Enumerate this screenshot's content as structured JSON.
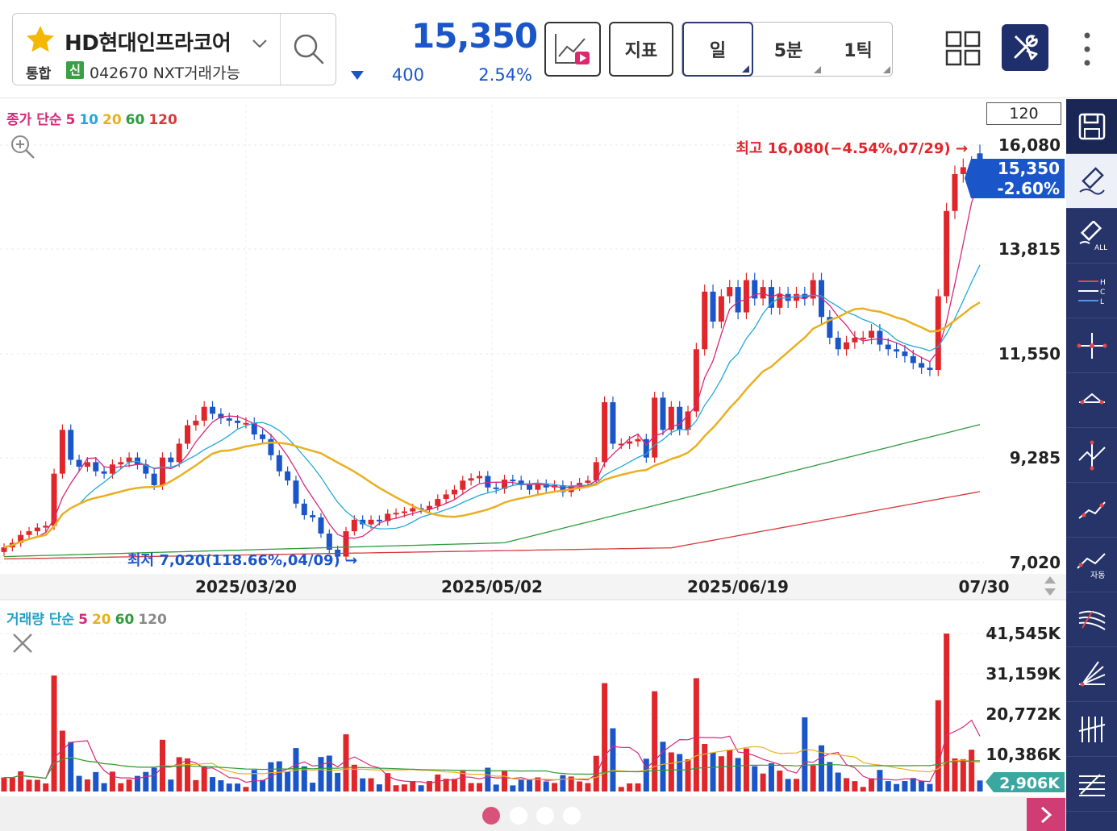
{
  "header": {
    "stock_name": "HD현대인프라코어",
    "market_label": "통합",
    "credit_badge": "신",
    "stock_code": "042670 NXT거래가능",
    "price": "15,350",
    "change_abs": "400",
    "change_pct": "2.54%",
    "indicator_button": "지표",
    "periods": [
      "일",
      "5분",
      "1틱"
    ],
    "active_period": "일"
  },
  "chart": {
    "ma_legend": [
      {
        "text": "종가 단순",
        "color": "#d6287a"
      },
      {
        "text": "5",
        "color": "#d6287a"
      },
      {
        "text": "10",
        "color": "#22a9d8"
      },
      {
        "text": "20",
        "color": "#e8b021"
      },
      {
        "text": "60",
        "color": "#2d9b3a"
      },
      {
        "text": "120",
        "color": "#d63a3a"
      }
    ],
    "count_box": "120",
    "price_axis": [
      "16,080",
      "13,815",
      "11,550",
      "9,285",
      "7,020"
    ],
    "current_tag_price": "15,350",
    "current_tag_pct": "-2.60%",
    "high_label": "최고 16,080(−4.54%,07/29) →",
    "low_label": "최저 7,020(118.66%,04/09) →",
    "date_axis": [
      "2025/03/20",
      "2025/05/02",
      "2025/06/19",
      "07/30"
    ],
    "vol_legend": [
      {
        "text": "거래량 단순",
        "color": "#22a0c4"
      },
      {
        "text": "5",
        "color": "#d6287a"
      },
      {
        "text": "20",
        "color": "#e8b021"
      },
      {
        "text": "60",
        "color": "#2d9b3a"
      },
      {
        "text": "120",
        "color": "#8a8a8a"
      }
    ],
    "volume_axis": [
      "41,545K",
      "31,159K",
      "20,772K",
      "10,386K"
    ],
    "volume_tag": "2,906K",
    "colors": {
      "up": "#e0262a",
      "down": "#1a56c9",
      "ma5": "#d6287a",
      "ma10": "#22a9d8",
      "ma20": "#e8b021",
      "ma60": "#2d9b3a",
      "ma120": "#d63a3a"
    }
  },
  "toolbar_icons": [
    "save-icon",
    "eraser-icon",
    "eraser-all-icon",
    "hcl-icon",
    "crosshair-icon",
    "trendline-icon",
    "cross-line-icon",
    "line-icon",
    "auto-line-icon",
    "fan-icon",
    "angle-icon",
    "grid-lines-icon",
    "parallel-lines-icon"
  ],
  "pager": {
    "pages": 4,
    "active": 0
  }
}
